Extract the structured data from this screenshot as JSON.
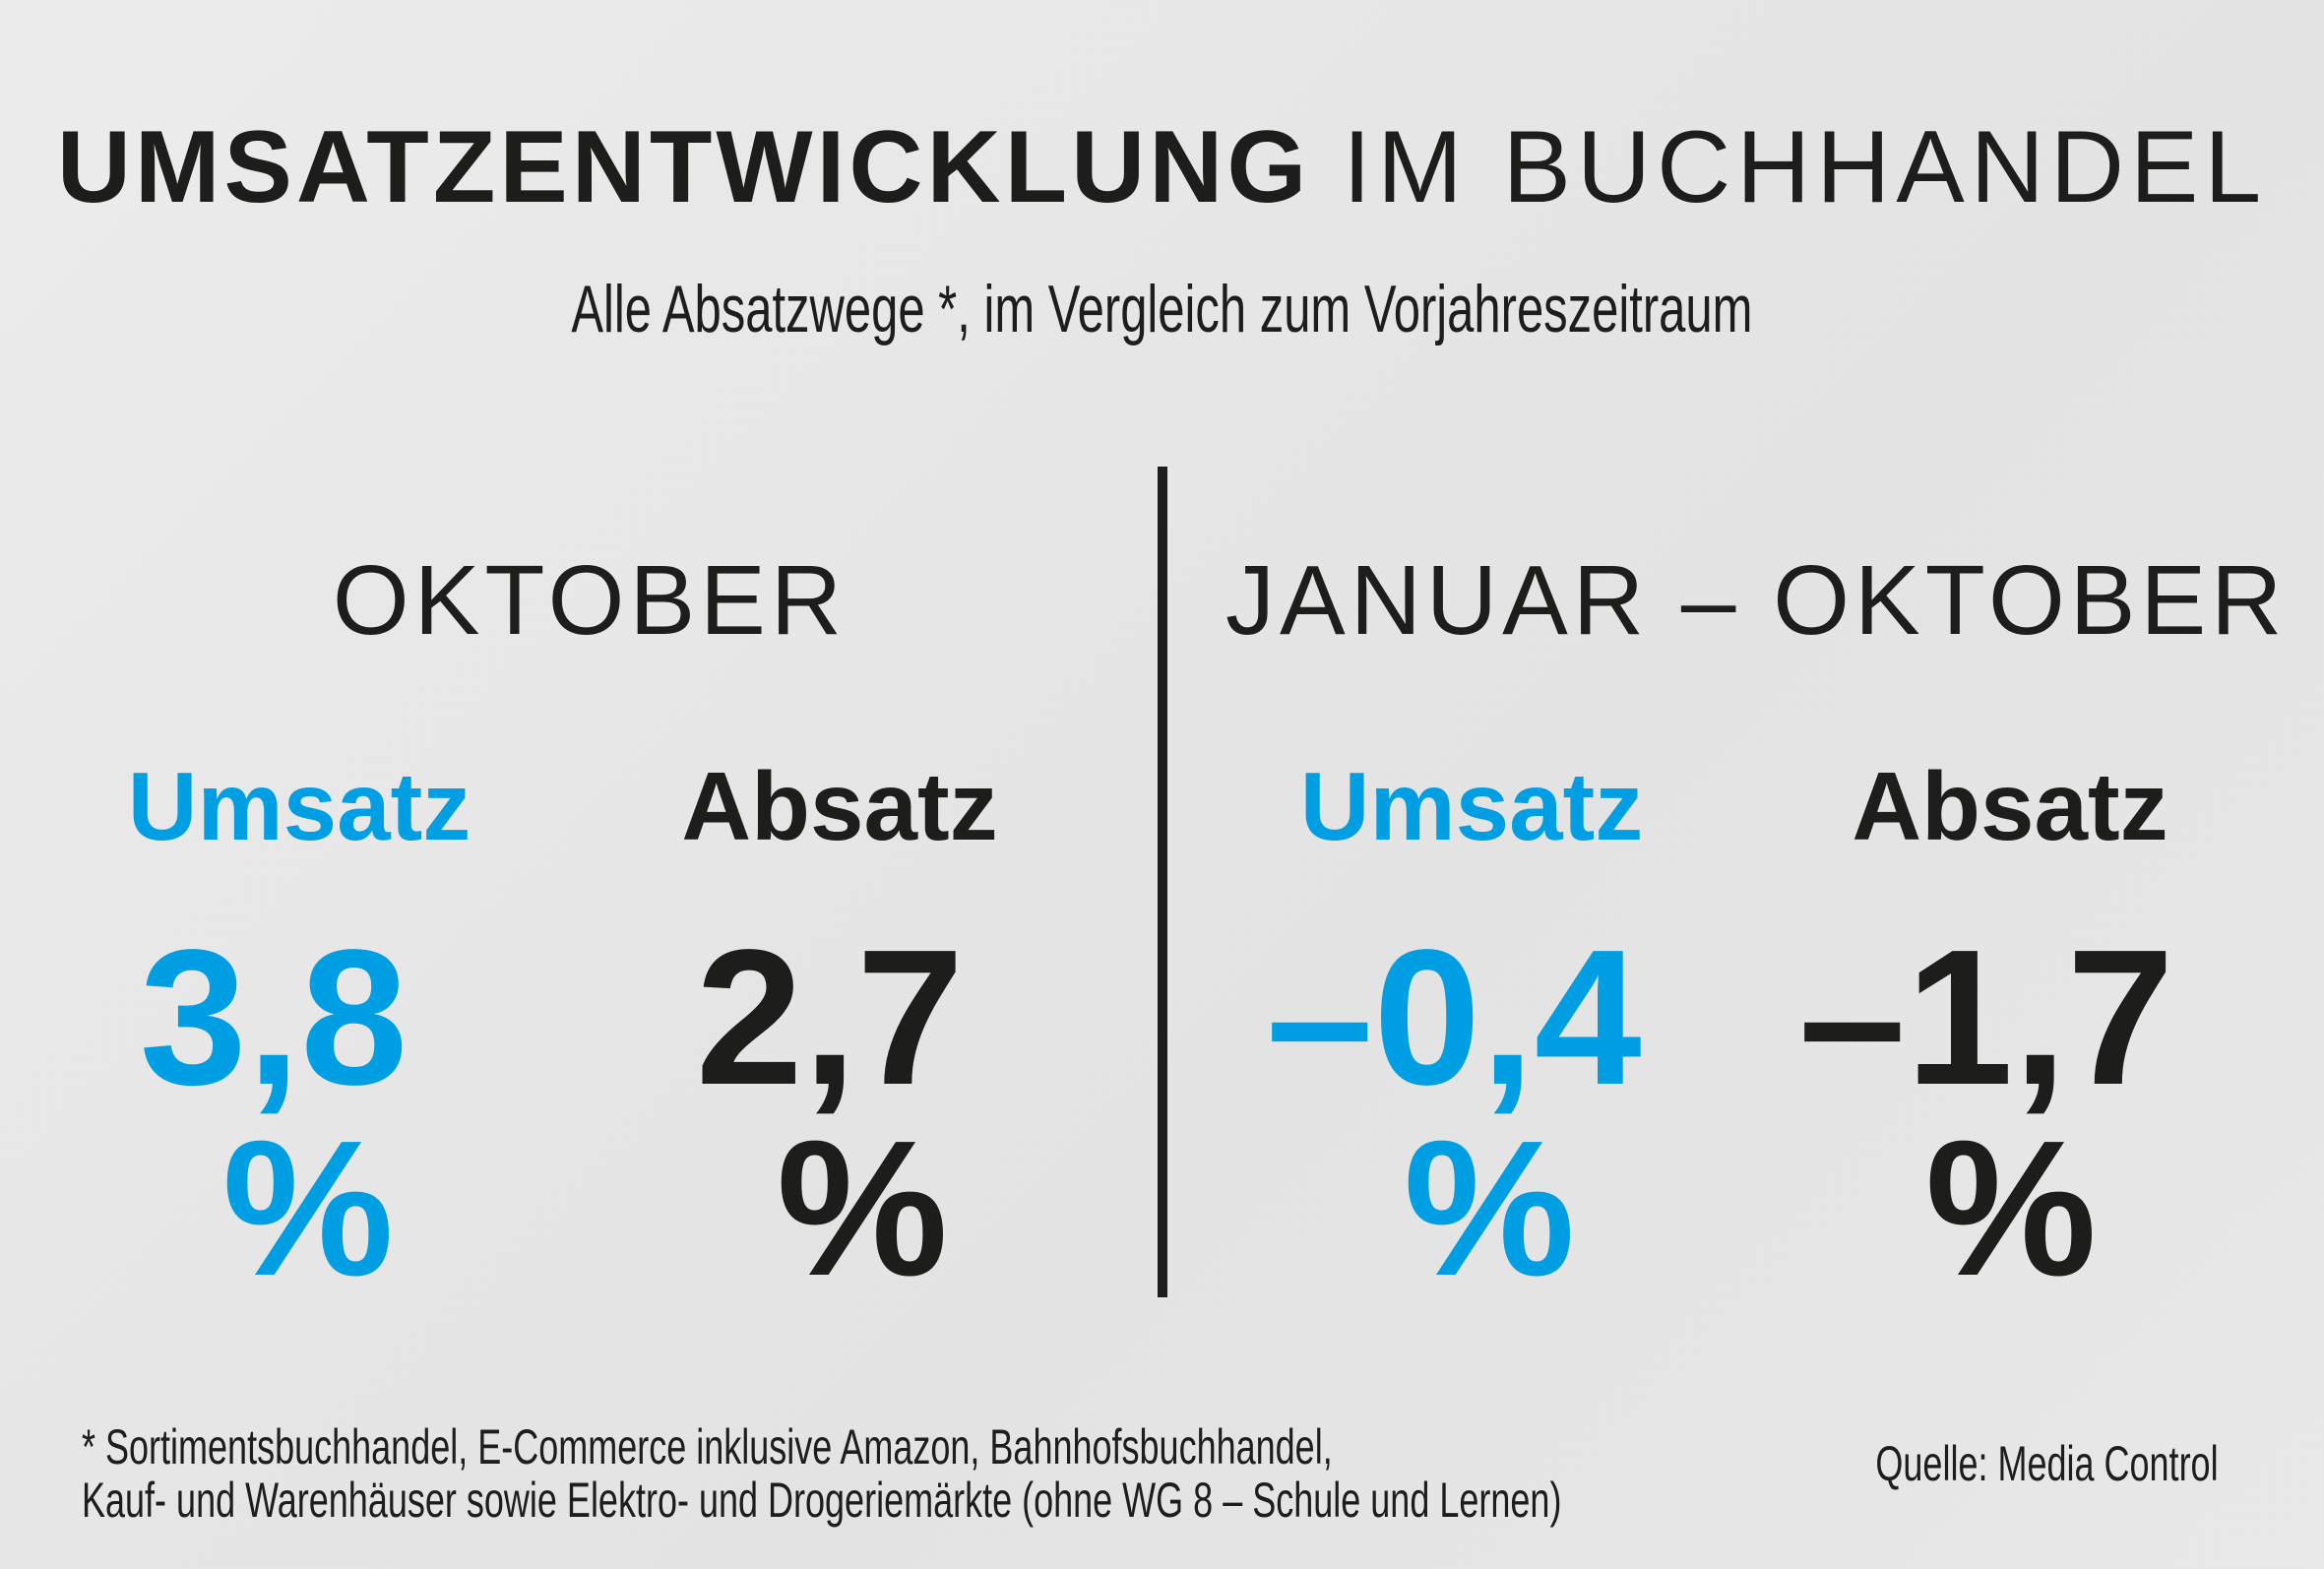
{
  "title": {
    "bold": "UMSATZENTWICKLUNG",
    "light": "IM BUCHHANDEL"
  },
  "subtitle": "Alle Absatzwege *, im Vergleich zum Vorjahreszeitraum",
  "sections": [
    {
      "period": "OKTOBER",
      "umsatz": {
        "label": "Umsatz",
        "value": "3,8",
        "unit": "%"
      },
      "absatz": {
        "label": "Absatz",
        "value": "2,7",
        "unit": "%"
      }
    },
    {
      "period": "JANUAR – OKTOBER",
      "umsatz": {
        "label": "Umsatz",
        "value": "–0,4",
        "unit": "%"
      },
      "absatz": {
        "label": "Absatz",
        "value": "–1,7",
        "unit": "%"
      }
    }
  ],
  "footnote": {
    "line1": "* Sortimentsbuchhandel, E-Commerce inklusive Amazon, Bahnhofsbuchhandel,",
    "line2": "Kauf- und Warenhäuser sowie Elektro- und Drogeriemärkte (ohne WG 8 – Schule und Lernen)"
  },
  "source": "Quelle: Media Control",
  "colors": {
    "accent": "#009fe3",
    "text": "#1d1d1b",
    "background": "#e6e6e6"
  }
}
